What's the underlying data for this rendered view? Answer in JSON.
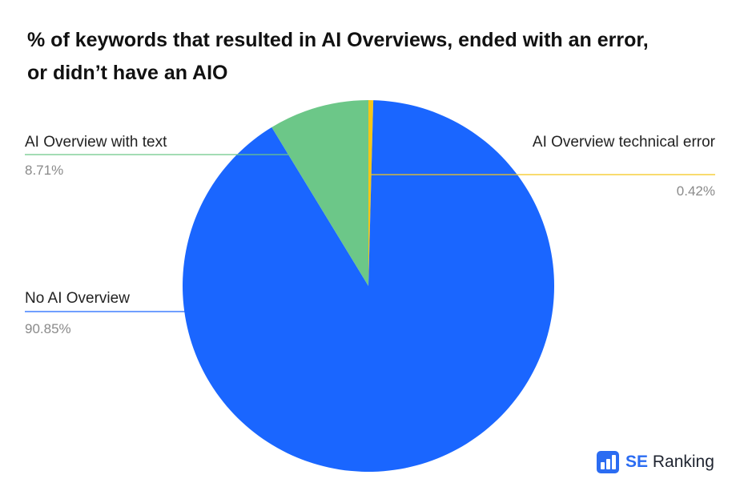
{
  "title_lines": [
    "% of keywords that resulted in AI Overviews, ended with an error,",
    "or didn’t have an AIO"
  ],
  "chart_data": {
    "type": "pie",
    "title": "% of keywords that resulted in AI Overviews, ended with an error, or didn’t have an AIO",
    "slices": [
      {
        "label": "AI Overview technical error",
        "value": 0.42,
        "value_label": "0.42%",
        "color": "#f5c518"
      },
      {
        "label": "No AI Overview",
        "value": 90.85,
        "value_label": "90.85%",
        "color": "#1a66ff"
      },
      {
        "label": "AI Overview with text",
        "value": 8.71,
        "value_label": "8.71%",
        "color": "#6cc788"
      }
    ],
    "start_angle": "12 o'clock",
    "direction": "clockwise"
  },
  "brand": {
    "prefix": "SE",
    "suffix": " Ranking"
  }
}
